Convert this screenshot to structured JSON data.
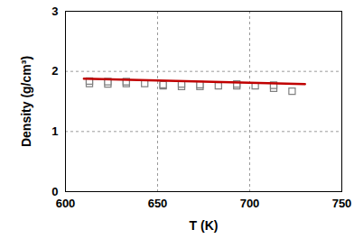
{
  "chart_data": {
    "type": "scatter",
    "x_label": "T (K)",
    "y_label": "Density (g/cm³)",
    "xlim": [
      600,
      750
    ],
    "xticks": [
      600,
      650,
      700,
      750
    ],
    "ylim": [
      0,
      3
    ],
    "yticks": [
      0,
      1,
      2,
      3
    ],
    "grid": true,
    "series": [
      {
        "type": "scatter",
        "color": "#808080",
        "marker": "square",
        "x": [
          613,
          613,
          623,
          623,
          633,
          633,
          643,
          653,
          653,
          663,
          663,
          673,
          673,
          683,
          693,
          693,
          703,
          713,
          713,
          723
        ],
        "values": [
          1.8,
          1.84,
          1.79,
          1.83,
          1.8,
          1.83,
          1.8,
          1.76,
          1.78,
          1.75,
          1.79,
          1.75,
          1.78,
          1.76,
          1.76,
          1.79,
          1.76,
          1.72,
          1.77,
          1.67
        ]
      },
      {
        "type": "line",
        "color": "#c00000",
        "line_style": "solid",
        "x": [
          610,
          730
        ],
        "values": [
          1.88,
          1.79
        ]
      }
    ]
  }
}
